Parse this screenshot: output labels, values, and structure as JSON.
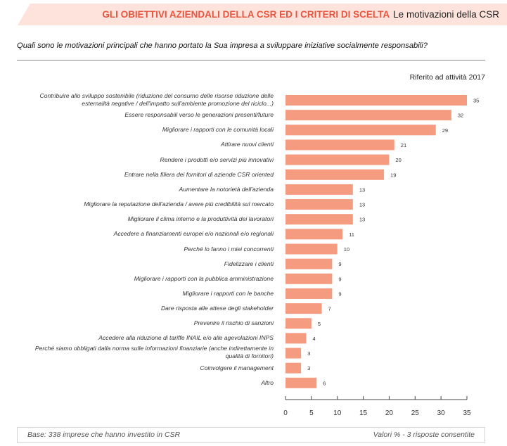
{
  "header": {
    "section_title": "GLI OBIETTIVI AZIENDALI DELLA CSR ED I CRITERI DI SCELTA",
    "subtitle": "Le motivazioni della CSR",
    "banner_color": "#fde3dc",
    "section_color": "#e8553f"
  },
  "question": "Quali sono le motivazioni principali che hanno portato la Sua impresa a sviluppare iniziative socialmente responsabili?",
  "reference_note": "Riferito ad attività 2017",
  "footer": {
    "base": "Base: 338 imprese che hanno investito in CSR",
    "note": "Valori % - 3 risposte consentite"
  },
  "chart_data": {
    "type": "bar",
    "orientation": "horizontal",
    "title": "",
    "xlabel": "",
    "ylabel": "",
    "xlim": [
      0,
      35
    ],
    "x_ticks": [
      0,
      5,
      10,
      15,
      20,
      25,
      30,
      35
    ],
    "grid": false,
    "bar_color": "#f59b80",
    "categories": [
      [
        "Contribuire allo sviluppo sostenibile (riduzione del consumo delle risorse riduzione delle",
        "esternalità negative / dell'impatto sull'ambiente promozione del riciclo...)"
      ],
      [
        "Essere responsabili verso le generazioni presenti/future"
      ],
      [
        "Migliorare i rapporti con le comunità locali"
      ],
      [
        "Attirare nuovi clienti"
      ],
      [
        "Rendere i prodotti e/o servizi più innovativi"
      ],
      [
        "Entrare nella filiera dei fornitori di aziende CSR oriented"
      ],
      [
        "Aumentare la notorietà dell'azienda"
      ],
      [
        "Migliorare la reputazione dell'azienda / avere più credibilità sul mercato"
      ],
      [
        "Migliorare il clima interno e la produttività dei lavoratori"
      ],
      [
        "Accedere a finanziamenti europei e/o nazionali e/o regionali"
      ],
      [
        "Perché lo fanno i miei concorrenti"
      ],
      [
        "Fidelizzare i clienti"
      ],
      [
        "Migliorare i rapporti con la pubblica amministrazione"
      ],
      [
        "Migliorare i rapporti con le banche"
      ],
      [
        "Dare risposta alle attese degli stakeholder"
      ],
      [
        "Prevenire il rischio di sanzioni"
      ],
      [
        "Accedere alla riduzione di tariffe INAIL e/o alle agevolazioni INPS"
      ],
      [
        "Perché siamo obbligati dalla norma sulle informazioni finanziarie (anche indirettamente in",
        "qualità di fornitori)"
      ],
      [
        "Coinvolgere il management"
      ],
      [
        "Altro"
      ]
    ],
    "values": [
      35,
      32,
      29,
      21,
      20,
      19,
      13,
      13,
      13,
      11,
      10,
      9,
      9,
      9,
      7,
      5,
      4,
      3,
      3,
      6
    ]
  }
}
